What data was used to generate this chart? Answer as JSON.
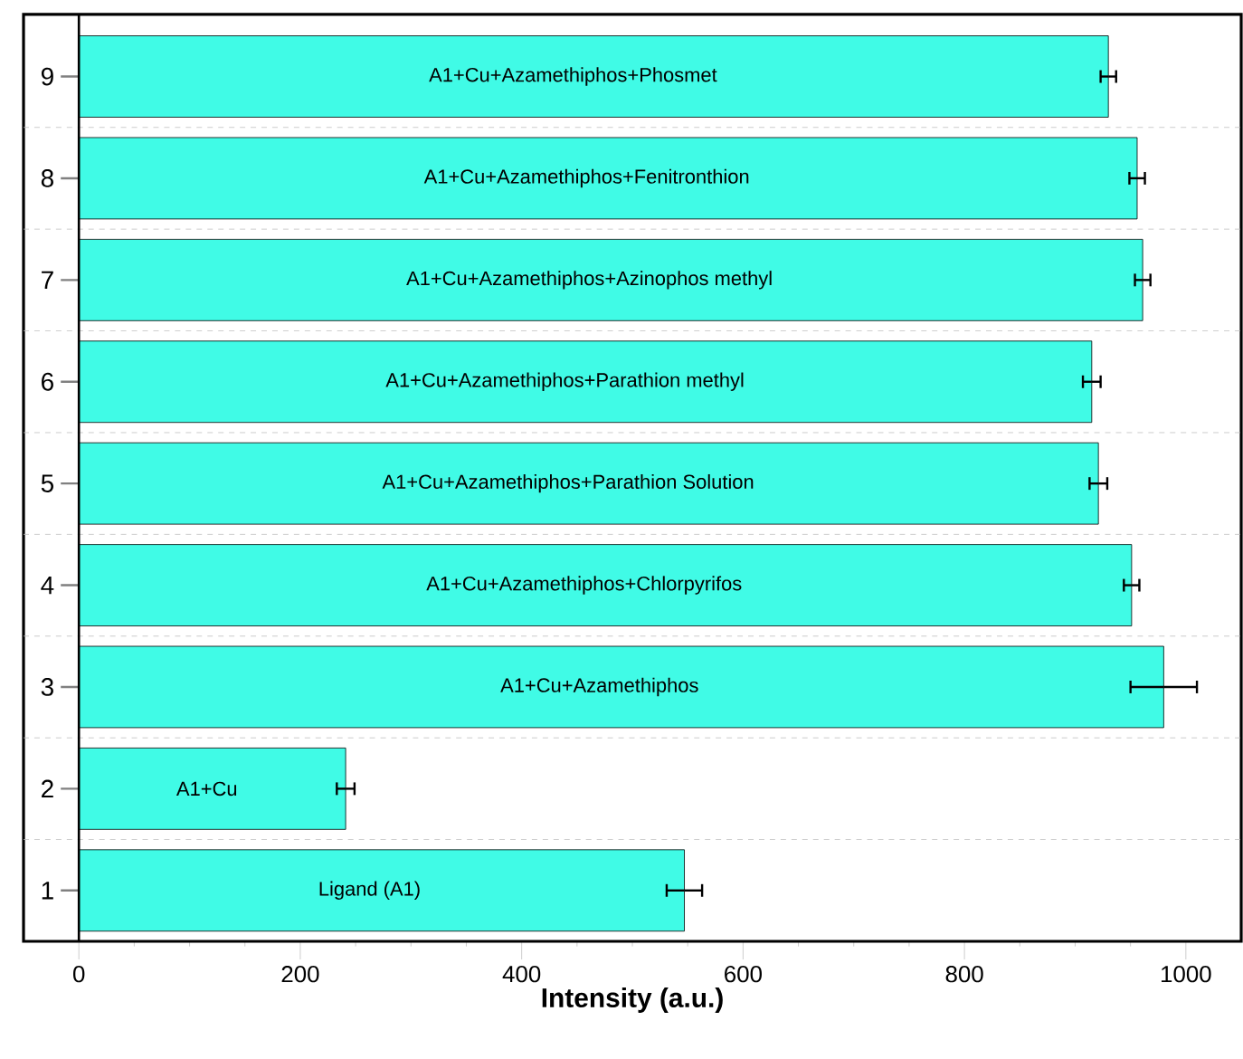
{
  "chart_data": {
    "type": "bar",
    "orientation": "horizontal",
    "xlabel": "Intensity (a.u.)",
    "categories": [
      "9",
      "8",
      "7",
      "6",
      "5",
      "4",
      "3",
      "2",
      "1"
    ],
    "values": [
      930,
      956,
      961,
      915,
      921,
      951,
      980,
      241,
      547
    ],
    "errors": [
      7,
      7,
      7,
      8,
      8,
      7,
      30,
      8,
      16
    ],
    "color": "#40fbe6",
    "xlim": [
      -50,
      1050
    ],
    "xticks": [
      0,
      200,
      400,
      600,
      800,
      1000
    ],
    "grid": "y",
    "annotations": [
      "A1+Cu+Azamethiphos+Phosmet",
      "A1+Cu+Azamethiphos+Fenitronthion",
      "A1+Cu+Azamethiphos+Azinophos methyl",
      "A1+Cu+Azamethiphos+Parathion methyl",
      "A1+Cu+Azamethiphos+Parathion Solution",
      "A1+Cu+Azamethiphos+Chlorpyrifos",
      "A1+Cu+Azamethiphos",
      "A1+Cu",
      "Ligand (A1)"
    ]
  }
}
